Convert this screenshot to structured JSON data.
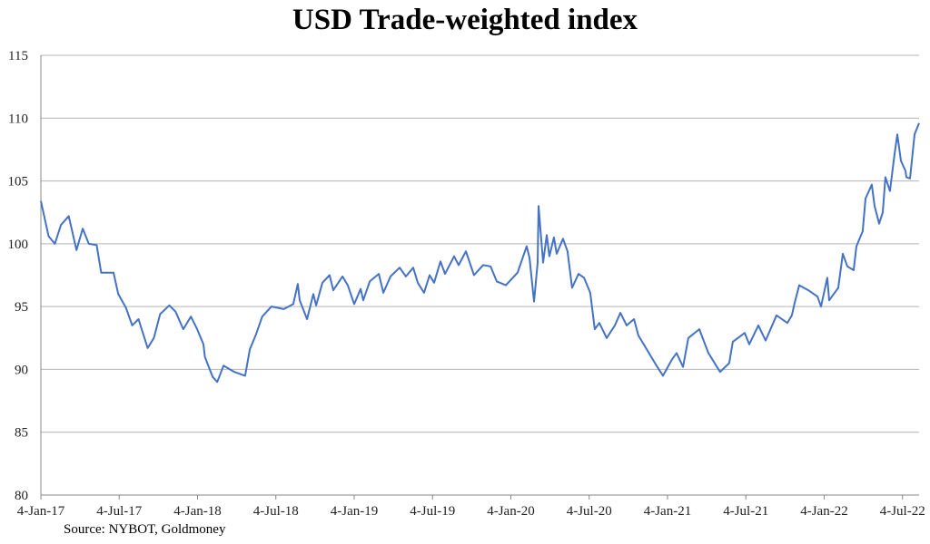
{
  "chart_data": {
    "type": "line",
    "title": "USD Trade-weighted index",
    "source": "Source: NYBOT, Goldmoney",
    "xlabel": "",
    "ylabel": "",
    "xlim": [
      2017.0,
      2022.606
    ],
    "ylim": [
      80,
      115
    ],
    "grid": true,
    "colors": {
      "line": "#4472c4",
      "grid": "#b4b4b4",
      "axis": "#888888"
    },
    "y_ticks": [
      80,
      85,
      90,
      95,
      100,
      105,
      110,
      115
    ],
    "x_ticks": [
      {
        "x": 2017.0,
        "label": "4-Jan-17"
      },
      {
        "x": 2017.5,
        "label": "4-Jul-17"
      },
      {
        "x": 2018.0,
        "label": "4-Jan-18"
      },
      {
        "x": 2018.5,
        "label": "4-Jul-18"
      },
      {
        "x": 2019.0,
        "label": "4-Jan-19"
      },
      {
        "x": 2019.5,
        "label": "4-Jul-19"
      },
      {
        "x": 2020.0,
        "label": "4-Jan-20"
      },
      {
        "x": 2020.5,
        "label": "4-Jul-20"
      },
      {
        "x": 2021.0,
        "label": "4-Jan-21"
      },
      {
        "x": 2021.5,
        "label": "4-Jul-21"
      },
      {
        "x": 2022.0,
        "label": "4-Jan-22"
      },
      {
        "x": 2022.5,
        "label": "4-Jul-22"
      }
    ],
    "series": [
      {
        "name": "USD Trade-weighted index",
        "x": [
          2017.0,
          2017.049,
          2017.089,
          2017.128,
          2017.178,
          2017.227,
          2017.267,
          2017.306,
          2017.356,
          2017.385,
          2017.464,
          2017.494,
          2017.543,
          2017.583,
          2017.623,
          2017.682,
          2017.721,
          2017.761,
          2017.82,
          2017.86,
          2017.909,
          2017.958,
          2017.998,
          2018.038,
          2018.047,
          2018.097,
          2018.126,
          2018.166,
          2018.235,
          2018.304,
          2018.334,
          2018.374,
          2018.413,
          2018.472,
          2018.551,
          2018.611,
          2018.64,
          2018.652,
          2018.699,
          2018.739,
          2018.757,
          2018.797,
          2018.843,
          2018.867,
          2018.925,
          2018.959,
          2019.0,
          2019.041,
          2019.058,
          2019.099,
          2019.157,
          2019.186,
          2019.232,
          2019.29,
          2019.33,
          2019.377,
          2019.406,
          2019.446,
          2019.481,
          2019.51,
          2019.551,
          2019.58,
          2019.638,
          2019.667,
          2019.713,
          2019.765,
          2019.823,
          2019.87,
          2019.91,
          2019.968,
          2020.043,
          2020.101,
          2020.119,
          2020.148,
          2020.171,
          2020.177,
          2020.206,
          2020.229,
          2020.246,
          2020.275,
          2020.293,
          2020.333,
          2020.362,
          2020.391,
          2020.432,
          2020.467,
          2020.507,
          2020.536,
          2020.565,
          2020.612,
          2020.664,
          2020.699,
          2020.739,
          2020.786,
          2020.814,
          2020.872,
          2020.925,
          2020.971,
          2021.029,
          2021.058,
          2021.099,
          2021.133,
          2021.203,
          2021.261,
          2021.336,
          2021.394,
          2021.417,
          2021.493,
          2021.522,
          2021.58,
          2021.626,
          2021.696,
          2021.765,
          2021.794,
          2021.812,
          2021.841,
          2021.899,
          2021.957,
          2021.98,
          2022.02,
          2022.032,
          2022.09,
          2022.119,
          2022.148,
          2022.188,
          2022.206,
          2022.246,
          2022.264,
          2022.304,
          2022.322,
          2022.351,
          2022.374,
          2022.391,
          2022.42,
          2022.449,
          2022.467,
          2022.49,
          2022.519,
          2022.525,
          2022.548,
          2022.577,
          2022.606
        ],
        "values": [
          103.4,
          100.6,
          100.0,
          101.5,
          102.2,
          99.5,
          101.2,
          100.0,
          99.9,
          97.7,
          97.7,
          96.0,
          94.9,
          93.5,
          94.0,
          91.7,
          92.5,
          94.4,
          95.1,
          94.6,
          93.2,
          94.2,
          93.2,
          92.0,
          91.0,
          89.4,
          89.0,
          90.3,
          89.8,
          89.5,
          91.6,
          92.8,
          94.2,
          95.0,
          94.8,
          95.2,
          96.8,
          95.5,
          94.0,
          96.0,
          95.1,
          96.9,
          97.5,
          96.3,
          97.4,
          96.7,
          95.2,
          96.4,
          95.5,
          97.0,
          97.6,
          96.1,
          97.4,
          98.1,
          97.4,
          98.1,
          96.9,
          96.1,
          97.5,
          96.9,
          98.6,
          97.6,
          99.0,
          98.3,
          99.4,
          97.5,
          98.3,
          98.2,
          97.0,
          96.7,
          97.7,
          99.8,
          98.9,
          95.4,
          98.5,
          103.0,
          98.5,
          100.7,
          99.0,
          100.5,
          99.2,
          100.4,
          99.4,
          96.5,
          97.6,
          97.3,
          96.1,
          93.2,
          93.7,
          92.5,
          93.5,
          94.5,
          93.5,
          94.0,
          92.7,
          91.5,
          90.4,
          89.5,
          90.8,
          91.3,
          90.2,
          92.5,
          93.2,
          91.3,
          89.8,
          90.5,
          92.2,
          92.9,
          92.0,
          93.5,
          92.3,
          94.3,
          93.7,
          94.3,
          95.3,
          96.7,
          96.3,
          95.8,
          95.0,
          97.3,
          95.5,
          96.5,
          99.2,
          98.2,
          97.9,
          99.8,
          101.0,
          103.6,
          104.7,
          103.0,
          101.6,
          102.5,
          105.3,
          104.2,
          107.1,
          108.7,
          106.6,
          105.8,
          105.3,
          105.2,
          108.7,
          109.6
        ]
      }
    ]
  }
}
